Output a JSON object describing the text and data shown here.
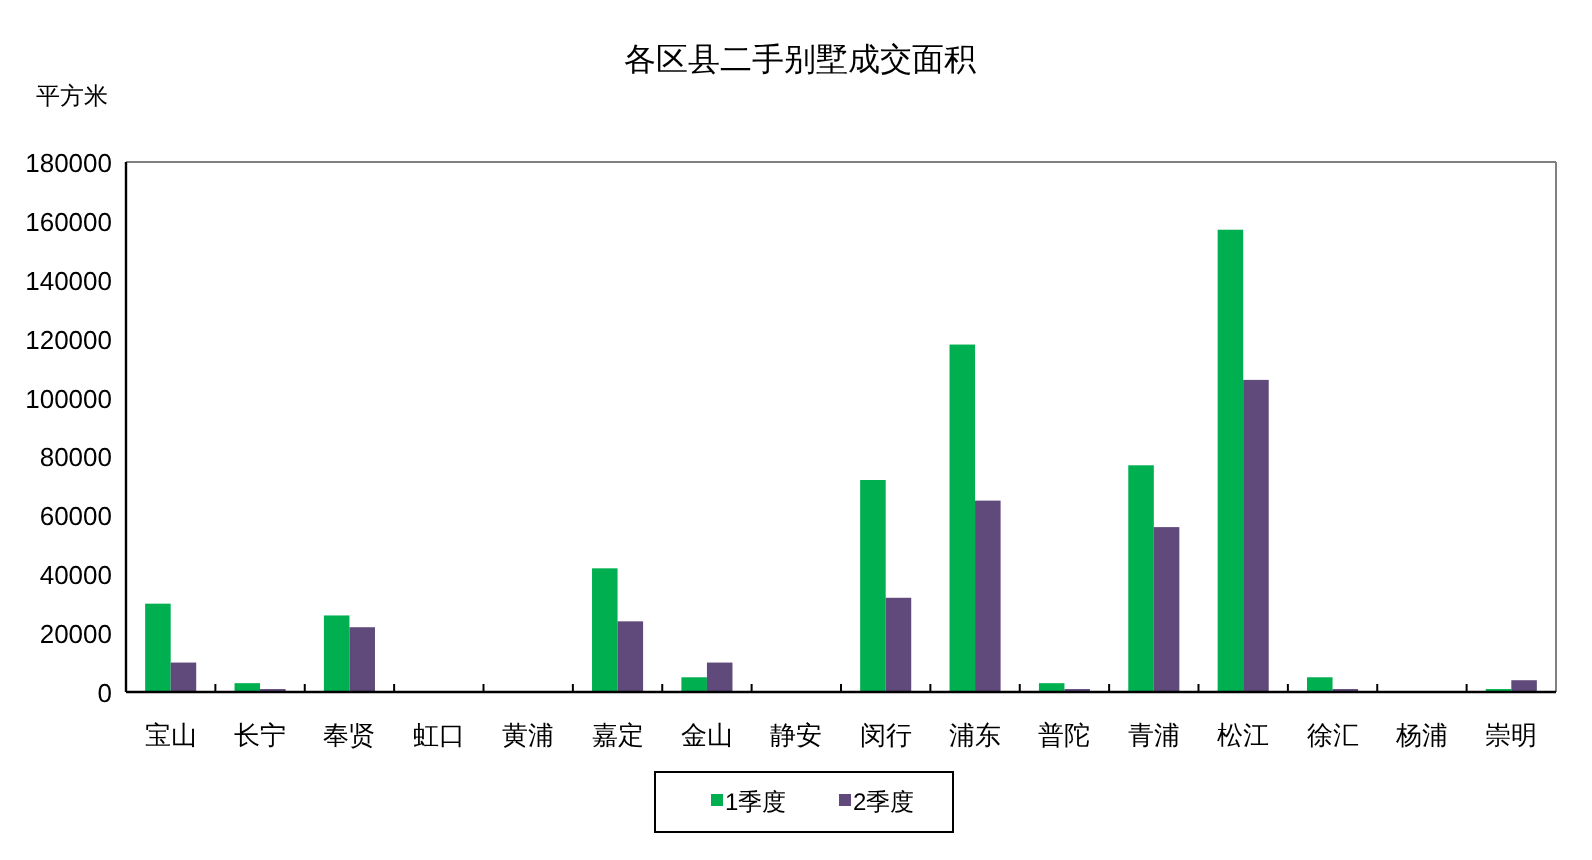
{
  "chart_data": {
    "type": "bar",
    "title": "各区县二手别墅成交面积",
    "ylabel": "平方米",
    "categories": [
      "宝山",
      "长宁",
      "奉贤",
      "虹口",
      "黄浦",
      "嘉定",
      "金山",
      "静安",
      "闵行",
      "浦东",
      "普陀",
      "青浦",
      "松江",
      "徐汇",
      "杨浦",
      "崇明"
    ],
    "series": [
      {
        "name": "1季度",
        "color": "#00b050",
        "values": [
          30000,
          3000,
          26000,
          null,
          null,
          42000,
          5000,
          null,
          72000,
          118000,
          3000,
          77000,
          157000,
          5000,
          null,
          1000
        ]
      },
      {
        "name": "2季度",
        "color": "#604a7b",
        "values": [
          10000,
          1000,
          22000,
          null,
          null,
          24000,
          10000,
          null,
          32000,
          65000,
          1000,
          56000,
          106000,
          1000,
          null,
          4000
        ]
      }
    ],
    "ylim": [
      0,
      180000
    ],
    "yticks": [
      0,
      20000,
      40000,
      60000,
      80000,
      100000,
      120000,
      140000,
      160000,
      180000
    ],
    "legend": "bottom"
  }
}
